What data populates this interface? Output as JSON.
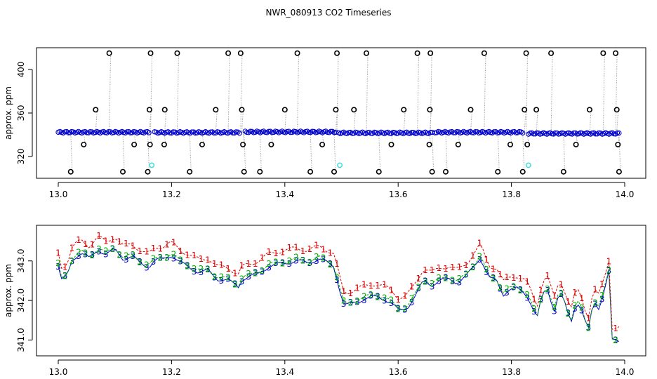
{
  "chart_data": {
    "title": "NWR_080913  CO2 Timeseries",
    "colors": {
      "s1": "#e00000",
      "s2": "#00b000",
      "s3": "#0000cc",
      "outline": "#000000",
      "highlight": "#33dddd",
      "drop": "#999999"
    },
    "panels": [
      {
        "id": "top",
        "type": "scatter",
        "ylabel": "approx. ppm",
        "xlim": [
          13.0,
          14.0
        ],
        "ylim": [
          300,
          420
        ],
        "xticks": [
          13.0,
          13.2,
          13.4,
          13.6,
          13.8,
          14.0
        ],
        "xtick_labels": [
          "13.0",
          "13.2",
          "13.4",
          "13.6",
          "13.8",
          "14.0"
        ],
        "yticks": [
          320,
          360,
          400
        ],
        "ytick_labels": [
          "320",
          "360",
          "400"
        ],
        "baseline_segments": [
          {
            "x0": 13.0,
            "x1": 13.16,
            "y": 342.3
          },
          {
            "x0": 13.17,
            "x1": 13.32,
            "y": 342.1
          },
          {
            "x0": 13.33,
            "x1": 13.49,
            "y": 342.6
          },
          {
            "x0": 13.495,
            "x1": 13.66,
            "y": 341.7
          },
          {
            "x0": 13.665,
            "x1": 13.82,
            "y": 342.3
          },
          {
            "x0": 13.83,
            "x1": 13.99,
            "y": 341.2
          }
        ],
        "spike_points": [
          {
            "x": 13.022,
            "y": 306
          },
          {
            "x": 13.045,
            "y": 331
          },
          {
            "x": 13.066,
            "y": 363
          },
          {
            "x": 13.09,
            "y": 415
          },
          {
            "x": 13.114,
            "y": 306
          },
          {
            "x": 13.134,
            "y": 331
          },
          {
            "x": 13.158,
            "y": 306
          },
          {
            "x": 13.161,
            "y": 363
          },
          {
            "x": 13.163,
            "y": 415
          },
          {
            "x": 13.162,
            "y": 331
          },
          {
            "x": 13.187,
            "y": 331
          },
          {
            "x": 13.188,
            "y": 363
          },
          {
            "x": 13.21,
            "y": 415
          },
          {
            "x": 13.232,
            "y": 306
          },
          {
            "x": 13.254,
            "y": 331
          },
          {
            "x": 13.278,
            "y": 363
          },
          {
            "x": 13.3,
            "y": 415
          },
          {
            "x": 13.322,
            "y": 415
          },
          {
            "x": 13.324,
            "y": 363
          },
          {
            "x": 13.326,
            "y": 331
          },
          {
            "x": 13.328,
            "y": 306
          },
          {
            "x": 13.356,
            "y": 306
          },
          {
            "x": 13.376,
            "y": 331
          },
          {
            "x": 13.4,
            "y": 363
          },
          {
            "x": 13.422,
            "y": 415
          },
          {
            "x": 13.445,
            "y": 306
          },
          {
            "x": 13.466,
            "y": 331
          },
          {
            "x": 13.487,
            "y": 306
          },
          {
            "x": 13.49,
            "y": 363
          },
          {
            "x": 13.492,
            "y": 415
          },
          {
            "x": 13.522,
            "y": 363
          },
          {
            "x": 13.544,
            "y": 415
          },
          {
            "x": 13.566,
            "y": 306
          },
          {
            "x": 13.588,
            "y": 331
          },
          {
            "x": 13.61,
            "y": 363
          },
          {
            "x": 13.634,
            "y": 415
          },
          {
            "x": 13.655,
            "y": 331
          },
          {
            "x": 13.656,
            "y": 363
          },
          {
            "x": 13.657,
            "y": 415
          },
          {
            "x": 13.66,
            "y": 306
          },
          {
            "x": 13.684,
            "y": 306
          },
          {
            "x": 13.706,
            "y": 331
          },
          {
            "x": 13.728,
            "y": 363
          },
          {
            "x": 13.752,
            "y": 415
          },
          {
            "x": 13.776,
            "y": 306
          },
          {
            "x": 13.798,
            "y": 331
          },
          {
            "x": 13.82,
            "y": 306
          },
          {
            "x": 13.823,
            "y": 363
          },
          {
            "x": 13.826,
            "y": 415
          },
          {
            "x": 13.828,
            "y": 331
          },
          {
            "x": 13.844,
            "y": 363
          },
          {
            "x": 13.87,
            "y": 415
          },
          {
            "x": 13.892,
            "y": 306
          },
          {
            "x": 13.914,
            "y": 331
          },
          {
            "x": 13.938,
            "y": 363
          },
          {
            "x": 13.962,
            "y": 415
          },
          {
            "x": 13.984,
            "y": 415
          },
          {
            "x": 13.986,
            "y": 363
          },
          {
            "x": 13.988,
            "y": 331
          },
          {
            "x": 13.99,
            "y": 306
          }
        ],
        "highlight_points": [
          {
            "x": 13.165,
            "y": 312
          },
          {
            "x": 13.497,
            "y": 312
          },
          {
            "x": 13.83,
            "y": 312
          }
        ]
      },
      {
        "id": "bottom",
        "type": "line",
        "ylabel": "approx. ppm",
        "xlim": [
          13.0,
          14.0
        ],
        "ylim": [
          340.6,
          343.9
        ],
        "xticks": [
          13.0,
          13.2,
          13.4,
          13.6,
          13.8,
          14.0
        ],
        "xtick_labels": [
          "13.0",
          "13.2",
          "13.4",
          "13.6",
          "13.8",
          "14.0"
        ],
        "yticks": [
          341.0,
          342.0,
          343.0
        ],
        "ytick_labels": [
          "341.0",
          "342.0",
          "343.0"
        ],
        "series": [
          {
            "name": "1",
            "symbol": "1",
            "color_key": "s1",
            "offset": 0.32
          },
          {
            "name": "2",
            "symbol": "2",
            "color_key": "s2",
            "offset": 0.04
          },
          {
            "name": "3",
            "symbol": "3",
            "color_key": "s3",
            "offset": 0.0
          }
        ],
        "base_curve": [
          [
            13.0,
            342.85
          ],
          [
            13.005,
            342.5
          ],
          [
            13.015,
            342.6
          ],
          [
            13.025,
            343.05
          ],
          [
            13.04,
            343.2
          ],
          [
            13.055,
            343.05
          ],
          [
            13.07,
            343.3
          ],
          [
            13.085,
            343.15
          ],
          [
            13.1,
            343.3
          ],
          [
            13.115,
            343.05
          ],
          [
            13.13,
            343.1
          ],
          [
            13.145,
            342.95
          ],
          [
            13.16,
            342.85
          ],
          [
            13.17,
            343.0
          ],
          [
            13.185,
            343.05
          ],
          [
            13.2,
            343.15
          ],
          [
            13.215,
            342.95
          ],
          [
            13.23,
            342.85
          ],
          [
            13.25,
            342.7
          ],
          [
            13.265,
            342.75
          ],
          [
            13.28,
            342.55
          ],
          [
            13.3,
            342.5
          ],
          [
            13.318,
            342.35
          ],
          [
            13.325,
            342.55
          ],
          [
            13.34,
            342.6
          ],
          [
            13.355,
            342.7
          ],
          [
            13.37,
            342.85
          ],
          [
            13.385,
            342.9
          ],
          [
            13.4,
            342.95
          ],
          [
            13.42,
            343.0
          ],
          [
            13.44,
            342.95
          ],
          [
            13.46,
            343.05
          ],
          [
            13.475,
            342.95
          ],
          [
            13.488,
            342.85
          ],
          [
            13.495,
            342.35
          ],
          [
            13.505,
            341.85
          ],
          [
            13.515,
            341.9
          ],
          [
            13.53,
            342.0
          ],
          [
            13.545,
            342.05
          ],
          [
            13.56,
            342.1
          ],
          [
            13.575,
            342.05
          ],
          [
            13.59,
            341.9
          ],
          [
            13.6,
            341.75
          ],
          [
            13.615,
            341.8
          ],
          [
            13.63,
            342.1
          ],
          [
            13.645,
            342.5
          ],
          [
            13.66,
            342.4
          ],
          [
            13.675,
            342.5
          ],
          [
            13.69,
            342.55
          ],
          [
            13.705,
            342.45
          ],
          [
            13.72,
            342.6
          ],
          [
            13.735,
            342.9
          ],
          [
            13.745,
            343.1
          ],
          [
            13.76,
            342.55
          ],
          [
            13.775,
            342.5
          ],
          [
            13.785,
            342.15
          ],
          [
            13.795,
            342.25
          ],
          [
            13.81,
            342.3
          ],
          [
            13.825,
            342.2
          ],
          [
            13.835,
            341.9
          ],
          [
            13.845,
            341.5
          ],
          [
            13.855,
            342.2
          ],
          [
            13.865,
            342.3
          ],
          [
            13.875,
            341.7
          ],
          [
            13.885,
            342.2
          ],
          [
            13.895,
            341.9
          ],
          [
            13.905,
            341.45
          ],
          [
            13.915,
            342.0
          ],
          [
            13.925,
            341.7
          ],
          [
            13.935,
            341.2
          ],
          [
            13.945,
            342.0
          ],
          [
            13.955,
            341.8
          ],
          [
            13.965,
            342.3
          ],
          [
            13.972,
            342.7
          ],
          [
            13.978,
            341.0
          ],
          [
            13.985,
            341.0
          ],
          [
            13.992,
            341.0
          ]
        ]
      }
    ]
  }
}
